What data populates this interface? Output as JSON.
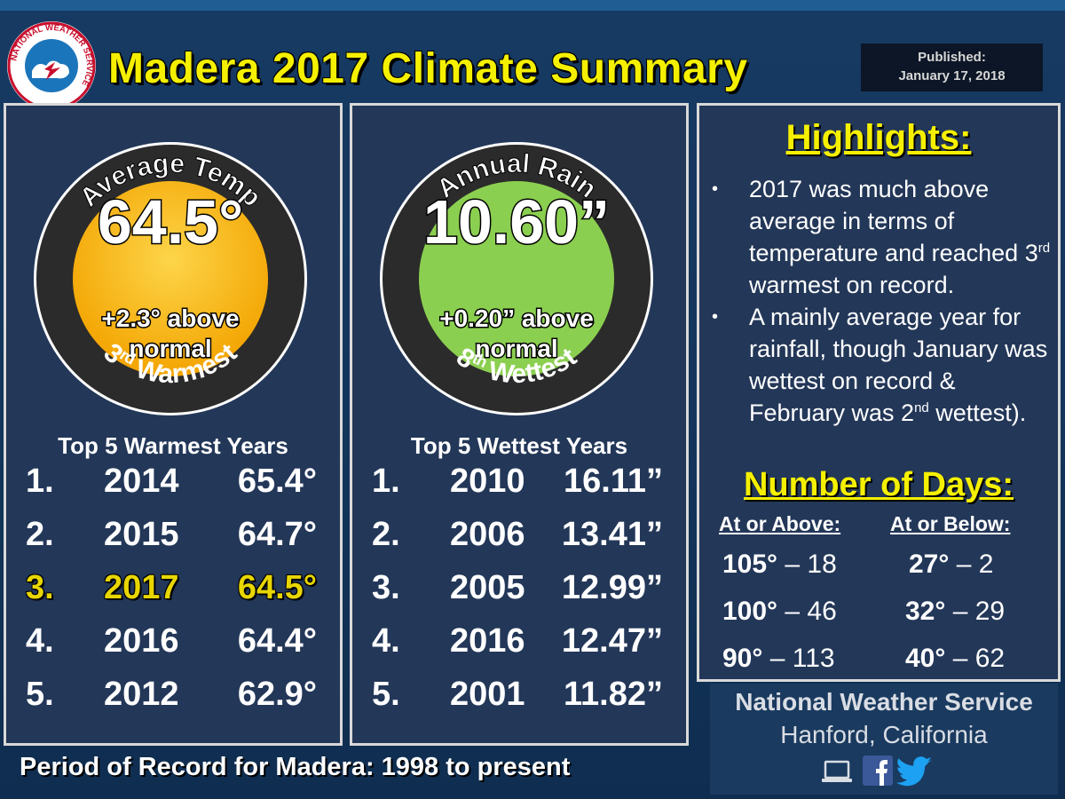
{
  "title": "Madera 2017 Climate Summary",
  "published": {
    "line1": "Published:",
    "line2": "January 17, 2018"
  },
  "logo": {
    "icon": "nws-logo-icon",
    "text": "NATIONAL WEATHER SERVICE"
  },
  "temp": {
    "arc_top": "Average Temp",
    "value": "64.5°",
    "anomaly_line1": "+2.3° above",
    "anomaly_line2": "normal",
    "rank_num": "3",
    "rank_sup": "rd",
    "rank_word": "Warmest",
    "list_title": "Top 5 Warmest Years",
    "list": [
      {
        "rank": "1.",
        "year": "2014",
        "value": "65.4°",
        "highlight": false
      },
      {
        "rank": "2.",
        "year": "2015",
        "value": "64.7°",
        "highlight": false
      },
      {
        "rank": "3.",
        "year": "2017",
        "value": "64.5°",
        "highlight": true
      },
      {
        "rank": "4.",
        "year": "2016",
        "value": "64.4°",
        "highlight": false
      },
      {
        "rank": "5.",
        "year": "2012",
        "value": "62.9°",
        "highlight": false
      }
    ],
    "colors": {
      "fill_top": "#fbc81a",
      "fill_bottom": "#f5a800"
    }
  },
  "rain": {
    "arc_top": "Annual Rain",
    "value": "10.60”",
    "anomaly_line1": "+0.20” above",
    "anomaly_line2": "normal",
    "rank_num": "8",
    "rank_sup": "th",
    "rank_word": "Wettest",
    "list_title": "Top 5 Wettest Years",
    "list": [
      {
        "rank": "1.",
        "year": "2010",
        "value": "16.11”",
        "highlight": false
      },
      {
        "rank": "2.",
        "year": "2006",
        "value": "13.41”",
        "highlight": false
      },
      {
        "rank": "3.",
        "year": "2005",
        "value": "12.99”",
        "highlight": false
      },
      {
        "rank": "4.",
        "year": "2016",
        "value": "12.47”",
        "highlight": false
      },
      {
        "rank": "5.",
        "year": "2001",
        "value": "11.82”",
        "highlight": false
      }
    ],
    "colors": {
      "fill": "#8bcf50"
    }
  },
  "highlights": {
    "title": "Highlights:",
    "bullets": [
      {
        "pre": "2017 was much above average in terms of temperature and reached 3",
        "sup": "rd",
        "post": " warmest on record."
      },
      {
        "pre": "A mainly average year for rainfall, though January was wettest on record & February was 2",
        "sup": "nd",
        "post": " wettest)."
      }
    ]
  },
  "days": {
    "title": "Number of Days:",
    "above_header": "At or Above:",
    "below_header": "At or Below:",
    "above": [
      {
        "temp": "105°",
        "sep": " –  ",
        "count": "18"
      },
      {
        "temp": "100°",
        "sep": " –  ",
        "count": "46"
      },
      {
        "temp": "90°",
        "sep": " –  ",
        "count": "113"
      }
    ],
    "below": [
      {
        "temp": "27°",
        "sep": " –  ",
        "count": "2"
      },
      {
        "temp": "32°",
        "sep": " –  ",
        "count": "29"
      },
      {
        "temp": "40°",
        "sep": " –  ",
        "count": "62"
      }
    ]
  },
  "footer": {
    "agency": "National Weather Service",
    "office": "Hanford, California",
    "icons": [
      "laptop-icon",
      "facebook-icon",
      "twitter-icon"
    ]
  },
  "period": "Period of Record for Madera: 1998 to present"
}
